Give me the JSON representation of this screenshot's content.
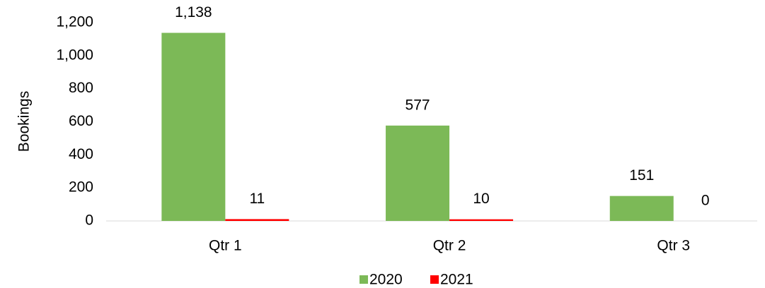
{
  "chart_data": {
    "type": "bar",
    "y_label": "Bookings",
    "categories": [
      "Qtr 1",
      "Qtr 2",
      "Qtr 3"
    ],
    "series": [
      {
        "name": "2020",
        "color": "#7cb957",
        "values": [
          1138,
          577,
          151
        ],
        "value_labels": [
          "1,138",
          "577",
          "151"
        ]
      },
      {
        "name": "2021",
        "color": "#ff0000",
        "values": [
          11,
          10,
          0
        ]
      }
    ],
    "ylim": [
      0,
      1200
    ],
    "yticks": [
      0,
      200,
      400,
      600,
      800,
      {
        "value": 1000,
        "label": "1,000"
      },
      {
        "value": 1200,
        "label": "1,200"
      }
    ],
    "grid": false,
    "legend": "bottom"
  }
}
